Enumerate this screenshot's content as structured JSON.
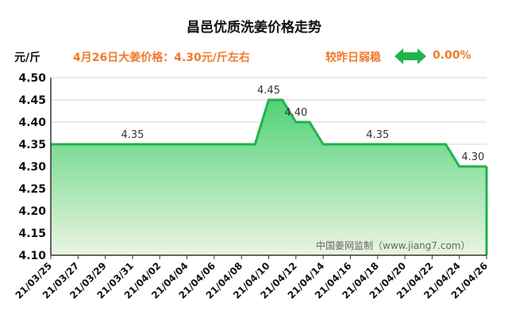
{
  "header": {
    "title": "昌邑优质洗姜价格走势",
    "unit": "元/斤",
    "price_text": "4月26日大姜价格：4.30元/斤左右",
    "status_text": "较昨日弱稳",
    "change_pct": "0.00%",
    "watermark": "中国姜网监制（www.jiang7.com）"
  },
  "colors": {
    "accent": "#f07a2a",
    "line": "#22b24c",
    "arrow": "#22b24c",
    "fill_top": "#4fd276",
    "fill_bottom": "#ebf4e1"
  },
  "chart_data": {
    "type": "area",
    "x": [
      "21/03/25",
      "21/03/26",
      "21/03/27",
      "21/03/28",
      "21/03/29",
      "21/03/30",
      "21/03/31",
      "21/04/01",
      "21/04/02",
      "21/04/03",
      "21/04/04",
      "21/04/05",
      "21/04/06",
      "21/04/07",
      "21/04/08",
      "21/04/09",
      "21/04/10",
      "21/04/11",
      "21/04/12",
      "21/04/13",
      "21/04/14",
      "21/04/15",
      "21/04/16",
      "21/04/17",
      "21/04/18",
      "21/04/19",
      "21/04/20",
      "21/04/21",
      "21/04/22",
      "21/04/23",
      "21/04/24",
      "21/04/25",
      "21/04/26"
    ],
    "series": [
      {
        "values": [
          4.35,
          4.35,
          4.35,
          4.35,
          4.35,
          4.35,
          4.35,
          4.35,
          4.35,
          4.35,
          4.35,
          4.35,
          4.35,
          4.35,
          4.35,
          4.35,
          4.45,
          4.45,
          4.4,
          4.4,
          4.35,
          4.35,
          4.35,
          4.35,
          4.35,
          4.35,
          4.35,
          4.35,
          4.35,
          4.35,
          4.3,
          4.3,
          4.3
        ]
      }
    ],
    "ylim": [
      4.1,
      4.5
    ],
    "yticks": [
      "4.50",
      "4.45",
      "4.40",
      "4.35",
      "4.30",
      "4.25",
      "4.20",
      "4.15",
      "4.10"
    ],
    "xticks": [
      "21/03/25",
      "21/03/27",
      "21/03/29",
      "21/03/31",
      "21/04/02",
      "21/04/04",
      "21/04/06",
      "21/04/08",
      "21/04/10",
      "21/04/12",
      "21/04/14",
      "21/04/16",
      "21/04/18",
      "21/04/20",
      "21/04/22",
      "21/04/24",
      "21/04/26"
    ],
    "annotations": [
      {
        "x": "21/03/31",
        "y": 4.35,
        "text": "4.35"
      },
      {
        "x": "21/04/10",
        "y": 4.45,
        "text": "4.45"
      },
      {
        "x": "21/04/12",
        "y": 4.4,
        "text": "4.40"
      },
      {
        "x": "21/04/18",
        "y": 4.35,
        "text": "4.35"
      },
      {
        "x": "21/04/25",
        "y": 4.3,
        "text": "4.30"
      }
    ],
    "grid": true
  }
}
